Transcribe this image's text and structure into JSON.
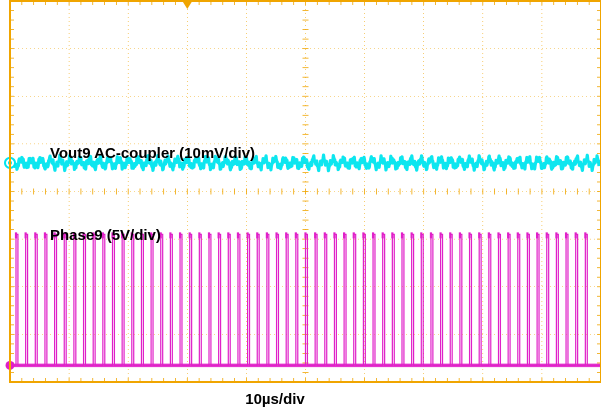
{
  "chart_data": {
    "type": "line",
    "title": "",
    "xlabel": "10µs/div",
    "ylabel": "",
    "grid": true,
    "divisions": {
      "x": 10,
      "y": 8
    },
    "xlim": [
      0,
      100
    ],
    "series": [
      {
        "name": "Vout9 AC-coupler (10mV/div)",
        "scale": "10mV/div",
        "waveform": "ripple",
        "ground_div": 4.6,
        "level_div": 4.6,
        "ripple_pp_div": 0.3,
        "color": "#00e5ee"
      },
      {
        "name": "Phase9 (5V/div)",
        "scale": "5V/div",
        "waveform": "square",
        "ground_div": 0.35,
        "low_div": 0.35,
        "high_div": 3.1,
        "cycles": 60,
        "duty": 0.2,
        "color": "#e020c8"
      }
    ]
  },
  "colors": {
    "frame": "#f0a500",
    "grid": "#f0a500",
    "vout_trace": "#00e5ee",
    "phase_trace": "#e020c8"
  }
}
